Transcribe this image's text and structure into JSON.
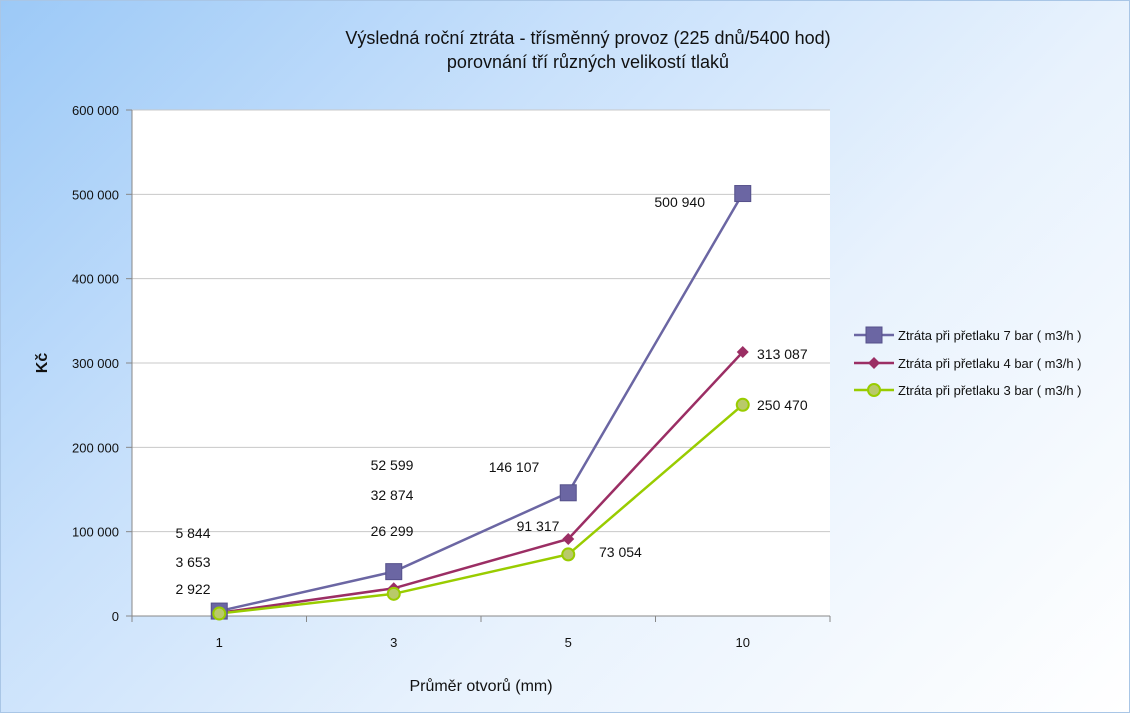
{
  "chart_data": {
    "type": "line",
    "title": "Výsledná roční ztráta  -  třísměnný provoz (225 dnů/5400 hod)",
    "subtitle": "porovnání tří různých velikostí  tlaků",
    "xlabel": "Průměr otvorů (mm)",
    "ylabel": "Kč",
    "categories": [
      "1",
      "3",
      "5",
      "10"
    ],
    "ylim": [
      0,
      600000
    ],
    "yticks": [
      0,
      100000,
      200000,
      300000,
      400000,
      500000,
      600000
    ],
    "ytick_labels": [
      "0",
      "100 000",
      "200 000",
      "300 000",
      "400 000",
      "500 000",
      "600 000"
    ],
    "grid": "horizontal",
    "legend_position": "right",
    "series": [
      {
        "name": "Ztráta při přetlaku 7 bar  ( m3/h )",
        "values": [
          5844,
          52599,
          146107,
          500940
        ],
        "labels": [
          "5 844",
          "52 599",
          "146 107",
          "500 940"
        ],
        "color": "#6b66a3",
        "marker": "square"
      },
      {
        "name": "Ztráta při přetlaku 4 bar  ( m3/h )",
        "values": [
          3653,
          32874,
          91317,
          313087
        ],
        "labels": [
          "3 653",
          "32 874",
          "91 317",
          "313 087"
        ],
        "color": "#9b2e64",
        "marker": "diamond"
      },
      {
        "name": "Ztráta při přetlaku 3 bar  ( m3/h )",
        "values": [
          2922,
          26299,
          73054,
          250470
        ],
        "labels": [
          "2 922",
          "26 299",
          "73 054",
          "250 470"
        ],
        "color": "#99cc00",
        "marker": "circle"
      }
    ]
  }
}
